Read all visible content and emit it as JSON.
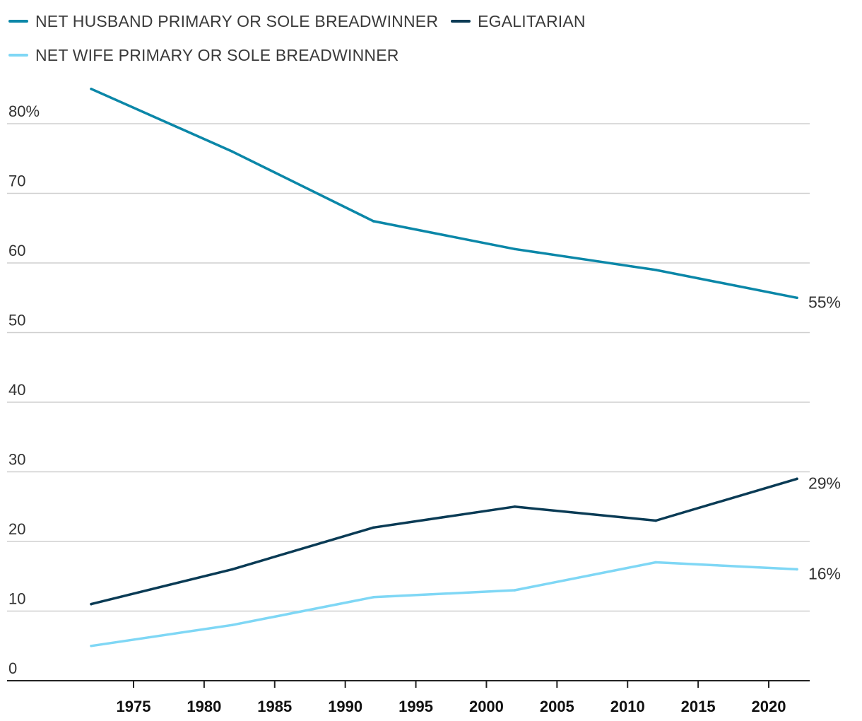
{
  "chart_data": {
    "type": "line",
    "title": "",
    "xlabel": "",
    "ylabel": "",
    "ylim": [
      0,
      80
    ],
    "xlim": [
      1967,
      2025
    ],
    "y_ticks": [
      0,
      10,
      20,
      30,
      40,
      50,
      60,
      70,
      80
    ],
    "y_tick_labels": [
      "0",
      "10",
      "20",
      "30",
      "40",
      "50",
      "60",
      "70",
      "80%"
    ],
    "x_ticks": [
      1975,
      1980,
      1985,
      1990,
      1995,
      2000,
      2005,
      2010,
      2015,
      2020
    ],
    "x_tick_labels": [
      "1975",
      "1980",
      "1985",
      "1990",
      "1995",
      "2000",
      "2005",
      "2010",
      "2015",
      "2020"
    ],
    "grid": true,
    "legend_position": "top-left",
    "series": [
      {
        "name": "NET HUSBAND PRIMARY OR SOLE BREADWINNER",
        "color": "#0b87a8",
        "x": [
          1972,
          1982,
          1992,
          2002,
          2012,
          2022
        ],
        "values": [
          85,
          76,
          66,
          62,
          59,
          55
        ],
        "end_label": "55%"
      },
      {
        "name": "EGALITARIAN",
        "color": "#0a3b55",
        "x": [
          1972,
          1982,
          1992,
          2002,
          2012,
          2022
        ],
        "values": [
          11,
          16,
          22,
          25,
          23,
          29
        ],
        "end_label": "29%"
      },
      {
        "name": "NET WIFE PRIMARY OR SOLE BREADWINNER",
        "color": "#7fd7f5",
        "x": [
          1972,
          1982,
          1992,
          2002,
          2012,
          2022
        ],
        "values": [
          5,
          8,
          12,
          13,
          17,
          16
        ],
        "end_label": "16%"
      }
    ]
  }
}
